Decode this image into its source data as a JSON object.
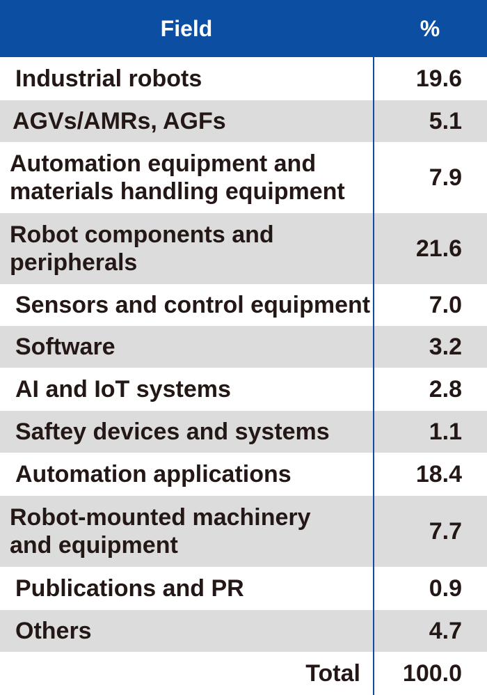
{
  "table": {
    "headers": {
      "field": "Field",
      "percent": "%"
    },
    "rows": [
      {
        "field": "Industrial robots",
        "percent": "19.6"
      },
      {
        "field": "AGVs/AMRs, AGFs",
        "percent": "5.1"
      },
      {
        "field": "Automation equipment and\nmaterials handling equipment",
        "percent": "7.9"
      },
      {
        "field": "Robot components and\nperipherals",
        "percent": "21.6"
      },
      {
        "field": "Sensors and control equipment",
        "percent": "7.0"
      },
      {
        "field": "Software",
        "percent": "3.2"
      },
      {
        "field": "AI and IoT systems",
        "percent": "2.8"
      },
      {
        "field": "Saftey devices and systems",
        "percent": "1.1"
      },
      {
        "field": "Automation applications",
        "percent": "18.4"
      },
      {
        "field": "Robot-mounted machinery\nand equipment",
        "percent": "7.7"
      },
      {
        "field": "Publications and PR",
        "percent": "0.9"
      },
      {
        "field": "Others",
        "percent": "4.7"
      }
    ],
    "total": {
      "label": "Total",
      "percent": "100.0"
    }
  },
  "chart_data": {
    "type": "table",
    "columns": [
      "Field",
      "%"
    ],
    "categories": [
      "Industrial robots",
      "AGVs/AMRs, AGFs",
      "Automation equipment and materials handling equipment",
      "Robot components and peripherals",
      "Sensors and control equipment",
      "Software",
      "AI and IoT systems",
      "Saftey devices and systems",
      "Automation applications",
      "Robot-mounted machinery and equipment",
      "Publications and PR",
      "Others"
    ],
    "values": [
      19.6,
      5.1,
      7.9,
      21.6,
      7.0,
      3.2,
      2.8,
      1.1,
      18.4,
      7.7,
      0.9,
      4.7
    ],
    "total": 100.0
  },
  "colors": {
    "header_bg": "#0b4ea2",
    "shade": "#dcdcdc",
    "text": "#231815"
  }
}
